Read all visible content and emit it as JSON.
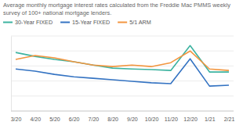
{
  "chart_data": {
    "type": "line",
    "title": "Average monthly mortgage interest rates calculated from the Freddie Mac PMMS weekly survey of 100+ national mortgage lenders.",
    "categories": [
      "3/20",
      "4/20",
      "5/20",
      "6/20",
      "7/20",
      "8/20",
      "9/20",
      "10/20",
      "11/20",
      "12/20",
      "1/21",
      "2/21"
    ],
    "series": [
      {
        "name": "30-Year FIXED",
        "color": "#3db3a0",
        "values": [
          3.45,
          3.32,
          3.22,
          3.14,
          3.03,
          2.93,
          2.9,
          2.88,
          2.85,
          3.68,
          2.8,
          2.8
        ]
      },
      {
        "name": "15-Year FIXED",
        "color": "#3473c2",
        "values": [
          2.9,
          2.83,
          2.72,
          2.64,
          2.59,
          2.54,
          2.49,
          2.44,
          2.41,
          3.24,
          2.33,
          2.36
        ]
      },
      {
        "name": "5/1 ARM",
        "color": "#f2953f",
        "values": [
          3.22,
          3.35,
          3.27,
          3.14,
          3.03,
          2.98,
          3.03,
          2.98,
          3.11,
          3.5,
          2.9,
          2.85
        ]
      }
    ],
    "ylim": [
      1.5,
      4.0
    ],
    "yticks": [
      1.5,
      2,
      2.5,
      3,
      3.5,
      4
    ],
    "grid": true,
    "legend": "top",
    "tick_labels": "x"
  }
}
